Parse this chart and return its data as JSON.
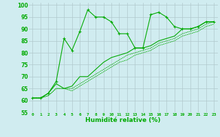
{
  "xlabel": "Humidité relative (%)",
  "background_color": "#d0ecf0",
  "grid_color": "#b0c8cc",
  "line_color": "#00aa00",
  "xlim": [
    -0.5,
    23.5
  ],
  "ylim": [
    55,
    101
  ],
  "yticks": [
    55,
    60,
    65,
    70,
    75,
    80,
    85,
    90,
    95,
    100
  ],
  "xticks": [
    0,
    1,
    2,
    3,
    4,
    5,
    6,
    7,
    8,
    9,
    10,
    11,
    12,
    13,
    14,
    15,
    16,
    17,
    18,
    19,
    20,
    21,
    22,
    23
  ],
  "series1": [
    61,
    61,
    63,
    68,
    86,
    81,
    89,
    98,
    95,
    95,
    93,
    88,
    88,
    82,
    82,
    96,
    97,
    95,
    91,
    90,
    90,
    91,
    93,
    93
  ],
  "series2": [
    61,
    61,
    63,
    67,
    65,
    66,
    70,
    70,
    73,
    76,
    78,
    79,
    80,
    82,
    82,
    83,
    85,
    86,
    87,
    90,
    90,
    91,
    93,
    93
  ],
  "series3": [
    61,
    61,
    62,
    65,
    65,
    65,
    67,
    69,
    71,
    73,
    75,
    77,
    79,
    80,
    81,
    82,
    84,
    85,
    86,
    88,
    89,
    90,
    92,
    93
  ],
  "series4": [
    61,
    61,
    62,
    65,
    65,
    64,
    66,
    68,
    70,
    72,
    74,
    76,
    77,
    79,
    80,
    81,
    83,
    84,
    85,
    87,
    88,
    89,
    91,
    92
  ]
}
